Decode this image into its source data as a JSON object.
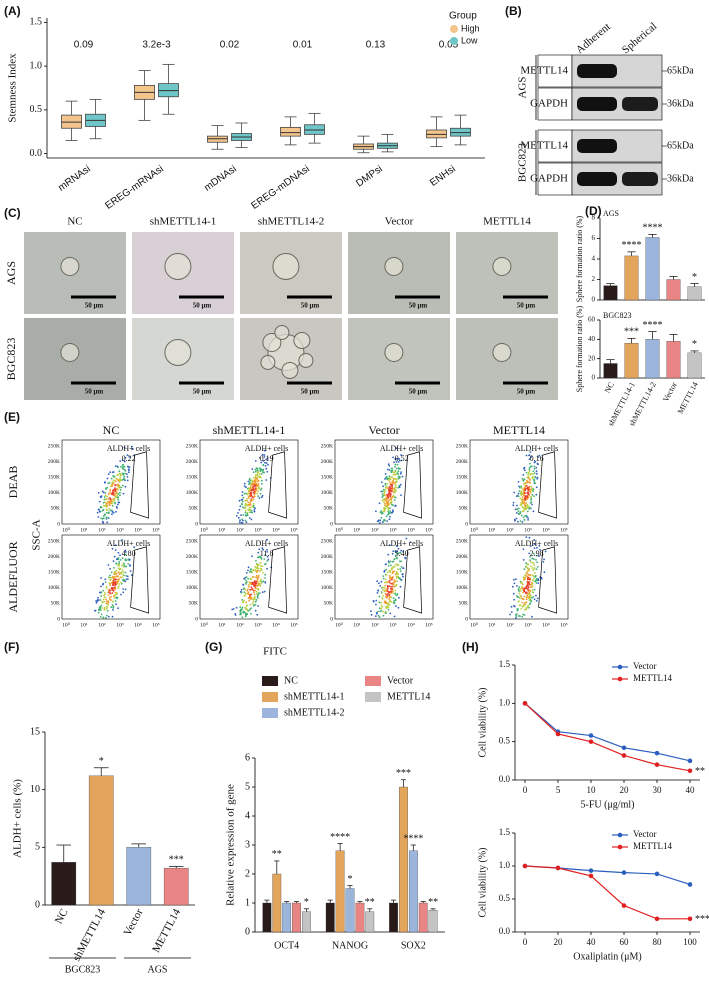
{
  "panel_labels": [
    "(A)",
    "(B)",
    "(C)",
    "(D)",
    "(E)",
    "(F)",
    "(G)",
    "(H)"
  ],
  "chart_data": [
    {
      "type": "box",
      "ylabel": "Stemness Index",
      "categories": [
        "mRNAsi",
        "EREG-mRNAsi",
        "mDNAsi",
        "EREG-mDNAsi",
        "DMPsi",
        "ENHsi"
      ],
      "p_values": [
        "0.09",
        "3.2e-3",
        "0.02",
        "0.01",
        "0.13",
        "0.05"
      ],
      "legend_title": "Group",
      "series": [
        {
          "name": "High",
          "color": "#f3c48c",
          "min": [
            0.15,
            0.38,
            0.05,
            0.1,
            0.01,
            0.08
          ],
          "q1": [
            0.29,
            0.62,
            0.13,
            0.2,
            0.05,
            0.18
          ],
          "median": [
            0.36,
            0.7,
            0.17,
            0.24,
            0.08,
            0.22
          ],
          "q3": [
            0.44,
            0.78,
            0.2,
            0.3,
            0.11,
            0.27
          ],
          "max": [
            0.6,
            0.95,
            0.32,
            0.42,
            0.2,
            0.42
          ]
        },
        {
          "name": "Low",
          "color": "#6fc6c8",
          "min": [
            0.17,
            0.45,
            0.07,
            0.12,
            0.02,
            0.1
          ],
          "q1": [
            0.31,
            0.65,
            0.15,
            0.22,
            0.06,
            0.2
          ],
          "median": [
            0.38,
            0.72,
            0.19,
            0.27,
            0.09,
            0.24
          ],
          "q3": [
            0.45,
            0.8,
            0.23,
            0.33,
            0.12,
            0.29
          ],
          "max": [
            0.62,
            1.02,
            0.35,
            0.46,
            0.22,
            0.44
          ]
        }
      ],
      "ylim": [
        -0.05,
        1.55
      ],
      "yticks": [
        {
          "value": 0,
          "label": "0.0"
        },
        {
          "value": 0.5,
          "label": "0.5"
        },
        {
          "value": 1,
          "label": "1.0"
        },
        {
          "value": 1.5,
          "label": "1.5"
        }
      ]
    },
    {
      "type": "bar",
      "subtitle": "AGS",
      "ylabel": "Sphere formation ratio (%)",
      "values": [
        1.4,
        4.3,
        6.1,
        2.0,
        1.3
      ],
      "errors": [
        0.2,
        0.4,
        0.3,
        0.3,
        0.3
      ],
      "annotations": [
        null,
        "****",
        "****",
        null,
        "*"
      ],
      "colors": [
        "#2a1b1b",
        "#e3a45c",
        "#9bb5dc",
        "#e98585",
        "#c4c4c4"
      ],
      "ylim": [
        0,
        8
      ],
      "yticks": [
        0,
        2,
        4,
        6,
        8
      ]
    },
    {
      "type": "bar",
      "subtitle": "BGC823",
      "ylabel": "Sphere formation ratio (%)",
      "categories": [
        "NC",
        "shMETTL14-1",
        "shMETTL14-2",
        "Vector",
        "METTL14"
      ],
      "values": [
        15,
        36,
        40,
        38,
        26
      ],
      "errors": [
        4,
        5,
        8,
        7,
        2
      ],
      "annotations": [
        null,
        "***",
        "****",
        null,
        "*"
      ],
      "colors": [
        "#2a1b1b",
        "#e3a45c",
        "#9bb5dc",
        "#e98585",
        "#c4c4c4"
      ],
      "ylim": [
        0,
        60
      ],
      "yticks": [
        0,
        20,
        40,
        60
      ]
    },
    {
      "type": "bar",
      "ylabel": "ALDH+ cells (%)",
      "categories": [
        "NC",
        "shMETTL14",
        "Vector",
        "METTL14"
      ],
      "values": [
        3.7,
        11.2,
        5.0,
        3.2
      ],
      "errors": [
        1.5,
        0.7,
        0.3,
        0.15
      ],
      "annotations": [
        null,
        "*",
        null,
        "***"
      ],
      "colors": [
        "#2a1b1b",
        "#e3a45c",
        "#9bb5dc",
        "#e98585"
      ],
      "group_labels": [
        "BGC823",
        "AGS"
      ],
      "ylim": [
        0,
        15
      ],
      "yticks": [
        0,
        5,
        10,
        15
      ]
    },
    {
      "type": "bar",
      "ylabel": "Relative expression of gene",
      "categories": [
        "OCT4",
        "NANOG",
        "SOX2"
      ],
      "series": [
        {
          "name": "NC",
          "color": "#2a1b1b",
          "values": [
            1,
            1,
            1
          ],
          "errors": [
            0.1,
            0.1,
            0.1
          ],
          "annotations": [
            null,
            null,
            null
          ]
        },
        {
          "name": "shMETTL14-1",
          "color": "#e3a45c",
          "values": [
            2.0,
            2.8,
            5.0
          ],
          "errors": [
            0.45,
            0.25,
            0.25
          ],
          "annotations": [
            "**",
            "****",
            "***"
          ]
        },
        {
          "name": "shMETTL14-2",
          "color": "#9bb5dc",
          "values": [
            1.0,
            1.5,
            2.8
          ],
          "errors": [
            0.05,
            0.1,
            0.2
          ],
          "annotations": [
            null,
            "*",
            "****"
          ]
        },
        {
          "name": "Vector",
          "color": "#e98585",
          "values": [
            1.0,
            1.0,
            1.0
          ],
          "errors": [
            0.05,
            0.05,
            0.05
          ],
          "annotations": [
            null,
            null,
            null
          ]
        },
        {
          "name": "METTL14",
          "color": "#c4c4c4",
          "values": [
            0.7,
            0.7,
            0.75
          ],
          "errors": [
            0.1,
            0.1,
            0.05
          ],
          "annotations": [
            "*",
            "**",
            "**"
          ]
        }
      ],
      "ylim": [
        0,
        6
      ],
      "yticks": [
        0,
        1,
        2,
        3,
        4,
        5,
        6
      ]
    },
    {
      "type": "line",
      "xlabel": "5-FU (μg/ml)",
      "ylabel": "Cell viability (%)",
      "categories": [
        0,
        5,
        10,
        20,
        30,
        40
      ],
      "series": [
        {
          "name": "Vector",
          "color": "#2b5fbf",
          "values": [
            1.0,
            0.63,
            0.58,
            0.42,
            0.35,
            0.25
          ]
        },
        {
          "name": "METTL14",
          "color": "#e02020",
          "values": [
            1.0,
            0.6,
            0.5,
            0.32,
            0.2,
            0.12
          ]
        }
      ],
      "annotation": "**",
      "ylim": [
        0,
        1.5
      ],
      "yticks": [
        {
          "value": 0,
          "label": "0.0"
        },
        {
          "value": 0.5,
          "label": "0.5"
        },
        {
          "value": 1,
          "label": "1.0"
        },
        {
          "value": 1.5,
          "label": "1.5"
        }
      ]
    },
    {
      "type": "line",
      "xlabel": "Oxaliplatin (μM)",
      "ylabel": "Cell viability (%)",
      "categories": [
        0,
        20,
        40,
        60,
        80,
        100
      ],
      "series": [
        {
          "name": "Vector",
          "color": "#2b5fbf",
          "values": [
            1.0,
            0.97,
            0.93,
            0.9,
            0.88,
            0.72
          ]
        },
        {
          "name": "METTL14",
          "color": "#e02020",
          "values": [
            1.0,
            0.97,
            0.85,
            0.4,
            0.2,
            0.2
          ]
        }
      ],
      "annotation": "****",
      "ylim": [
        0,
        1.5
      ],
      "yticks": [
        {
          "value": 0,
          "label": "0.0"
        },
        {
          "value": 0.5,
          "label": "0.5"
        },
        {
          "value": 1,
          "label": "1.0"
        },
        {
          "value": 1.5,
          "label": "1.5"
        }
      ]
    }
  ],
  "blot": {
    "columns": [
      "Adherent",
      "Spherical"
    ],
    "groups": [
      {
        "name": "AGS",
        "rows": [
          {
            "protein": "METTL14",
            "size": "65kDa"
          },
          {
            "protein": "GAPDH",
            "size": "36kDa"
          }
        ]
      },
      {
        "name": "BGC823",
        "rows": [
          {
            "protein": "METTL14",
            "size": "65kDa"
          },
          {
            "protein": "GAPDH",
            "size": "36kDa"
          }
        ]
      }
    ]
  },
  "micrographs": {
    "columns": [
      "NC",
      "shMETTL14-1",
      "shMETTL14-2",
      "Vector",
      "METTL14"
    ],
    "rows": [
      "AGS",
      "BGC823"
    ],
    "scale_bar": "50 μm"
  },
  "flow": {
    "columns": [
      "NC",
      "shMETTL14-1",
      "Vector",
      "METTL14"
    ],
    "rows": [
      "DEAB",
      "ALDEFLUOR"
    ],
    "y_label": "SSC-A",
    "x_label": "FITC",
    "gate_label": "ALDH+ cells",
    "gate_values": [
      [
        "0.22",
        "0.19",
        "0.52",
        "0.16"
      ],
      [
        "4.80",
        "11.8",
        "5.40",
        "2.98"
      ]
    ],
    "yticks": [
      "0",
      "50K",
      "100K",
      "150K",
      "200K",
      "250K"
    ],
    "xticks": [
      "10⁰",
      "10¹",
      "10²",
      "10³",
      "10⁴",
      "10⁵"
    ]
  }
}
